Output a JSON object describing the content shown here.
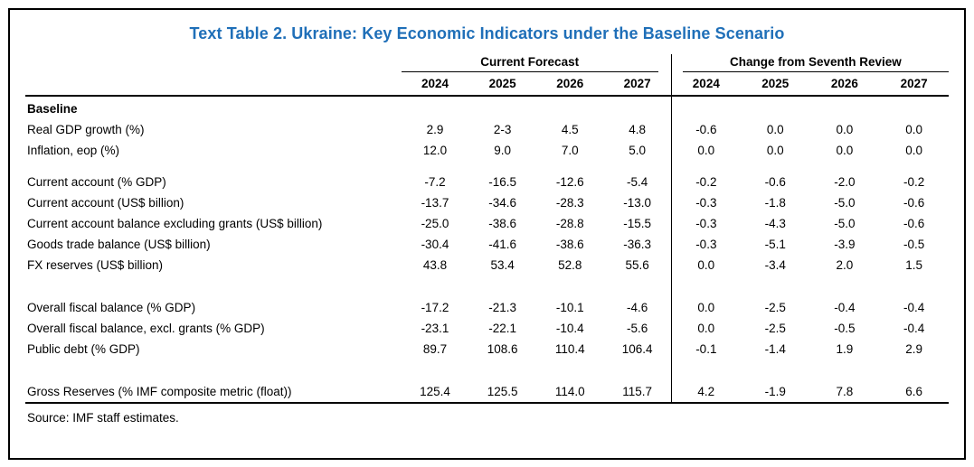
{
  "title": "Text Table 2. Ukraine: Key Economic Indicators under the Baseline Scenario",
  "colors": {
    "title_accent": "#1f6fb8",
    "rule": "#000000"
  },
  "table": {
    "group_headers": [
      "Current Forecast",
      "Change from Seventh Review"
    ],
    "years": [
      "2024",
      "2025",
      "2026",
      "2027"
    ],
    "section_label": "Baseline",
    "groups": [
      {
        "rows": [
          {
            "label": "Real GDP growth (%)",
            "forecast": [
              "2.9",
              "2-3",
              "4.5",
              "4.8"
            ],
            "change": [
              "-0.6",
              "0.0",
              "0.0",
              "0.0"
            ]
          },
          {
            "label": "Inflation, eop (%)",
            "forecast": [
              "12.0",
              "9.0",
              "7.0",
              "5.0"
            ],
            "change": [
              "0.0",
              "0.0",
              "0.0",
              "0.0"
            ]
          }
        ]
      },
      {
        "rows": [
          {
            "label": "Current account (% GDP)",
            "forecast": [
              "-7.2",
              "-16.5",
              "-12.6",
              "-5.4"
            ],
            "change": [
              "-0.2",
              "-0.6",
              "-2.0",
              "-0.2"
            ]
          },
          {
            "label": "Current account (US$ billion)",
            "forecast": [
              "-13.7",
              "-34.6",
              "-28.3",
              "-13.0"
            ],
            "change": [
              "-0.3",
              "-1.8",
              "-5.0",
              "-0.6"
            ]
          },
          {
            "label": "Current account balance excluding grants (US$ billion)",
            "forecast": [
              "-25.0",
              "-38.6",
              "-28.8",
              "-15.5"
            ],
            "change": [
              "-0.3",
              "-4.3",
              "-5.0",
              "-0.6"
            ]
          },
          {
            "label": "Goods trade balance (US$ billion)",
            "forecast": [
              "-30.4",
              "-41.6",
              "-38.6",
              "-36.3"
            ],
            "change": [
              "-0.3",
              "-5.1",
              "-3.9",
              "-0.5"
            ]
          },
          {
            "label": "FX reserves (US$ billion)",
            "forecast": [
              "43.8",
              "53.4",
              "52.8",
              "55.6"
            ],
            "change": [
              "0.0",
              "-3.4",
              "2.0",
              "1.5"
            ]
          }
        ]
      },
      {
        "rows": [
          {
            "label": "Overall fiscal balance (% GDP)",
            "forecast": [
              "-17.2",
              "-21.3",
              "-10.1",
              "-4.6"
            ],
            "change": [
              "0.0",
              "-2.5",
              "-0.4",
              "-0.4"
            ]
          },
          {
            "label": "Overall fiscal balance, excl. grants (% GDP)",
            "forecast": [
              "-23.1",
              "-22.1",
              "-10.4",
              "-5.6"
            ],
            "change": [
              "0.0",
              "-2.5",
              "-0.5",
              "-0.4"
            ]
          },
          {
            "label": "Public debt (% GDP)",
            "forecast": [
              "89.7",
              "108.6",
              "110.4",
              "106.4"
            ],
            "change": [
              "-0.1",
              "-1.4",
              "1.9",
              "2.9"
            ]
          }
        ]
      },
      {
        "rows": [
          {
            "label": "Gross Reserves (% IMF composite metric (float))",
            "forecast": [
              "125.4",
              "125.5",
              "114.0",
              "115.7"
            ],
            "change": [
              "4.2",
              "-1.9",
              "7.8",
              "6.6"
            ]
          }
        ]
      }
    ]
  },
  "source": "Source: IMF staff estimates."
}
